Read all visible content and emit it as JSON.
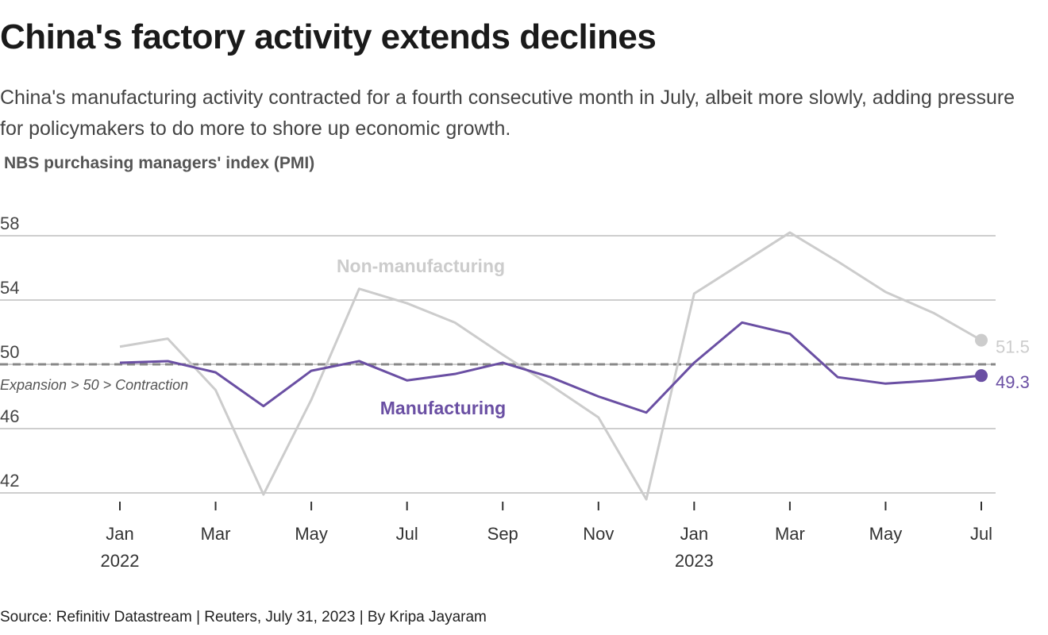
{
  "chart_data": {
    "type": "line",
    "title": "China's factory activity extends declines",
    "subtitle": "China's manufacturing activity contracted for a fourth consecutive month in July, albeit more slowly, adding pressure for policymakers to do more to shore up economic growth.",
    "y_label": "NBS purchasing managers' index (PMI)",
    "source": "Source: Refinitiv Datastream | Reuters, July 31, 2023 | By Kripa Jayaram",
    "categories": [
      "Jan",
      null,
      "Mar",
      null,
      "May",
      null,
      "Jul",
      null,
      "Sep",
      null,
      "Nov",
      null,
      "Jan",
      null,
      "Mar",
      null,
      "May",
      null,
      "Jul"
    ],
    "year_labels": [
      "2022",
      null,
      null,
      null,
      null,
      null,
      null,
      null,
      null,
      null,
      null,
      null,
      "2023",
      null,
      null,
      null,
      null,
      null,
      null
    ],
    "series": [
      {
        "name": "Non-manufacturing",
        "color": "#cccccc",
        "values": [
          51.1,
          51.6,
          48.4,
          41.9,
          47.8,
          54.7,
          53.8,
          52.6,
          50.6,
          48.7,
          46.7,
          41.6,
          54.4,
          56.3,
          58.2,
          56.4,
          54.5,
          53.2,
          51.5
        ]
      },
      {
        "name": "Manufacturing",
        "color": "#6a4fa3",
        "values": [
          50.1,
          50.2,
          49.5,
          47.4,
          49.6,
          50.2,
          49.0,
          49.4,
          50.1,
          49.2,
          48.0,
          47.0,
          50.1,
          52.6,
          51.9,
          49.2,
          48.8,
          49.0,
          49.3
        ]
      }
    ],
    "reference_line": {
      "value": 50,
      "label": "Expansion > 50 > Contraction"
    },
    "ylim": [
      42,
      58
    ],
    "yticks": [
      42,
      46,
      50,
      54,
      58
    ],
    "grid": true
  }
}
